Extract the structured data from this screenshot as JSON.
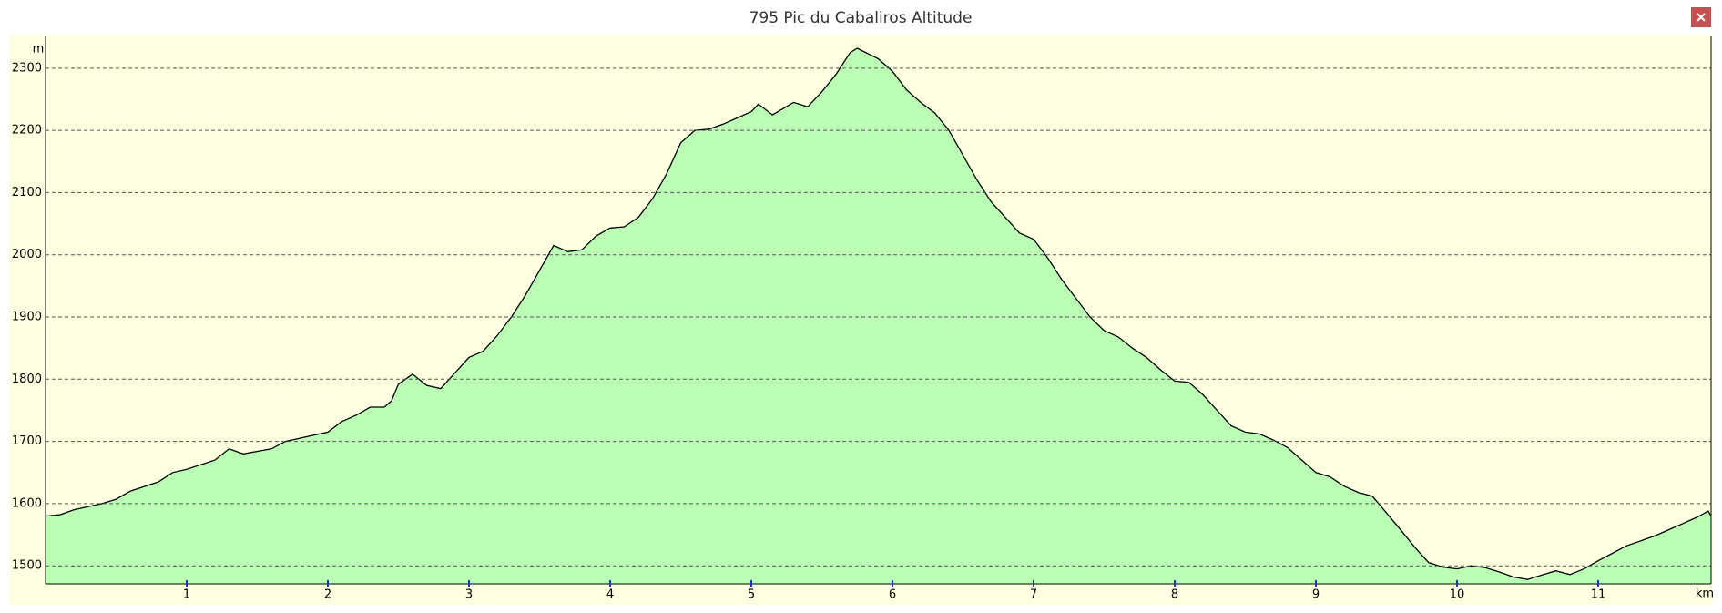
{
  "chart_data": {
    "type": "area",
    "title": "795 Pic du Cabaliros Altitude",
    "y_label": "m",
    "x_label": "km",
    "fill_color": "#bbffb4",
    "line_color": "#000000",
    "background": "#ffffe1",
    "grid": true,
    "xlim": [
      0,
      11.8
    ],
    "ylim": [
      1471,
      2351
    ],
    "xticks": [
      1,
      2,
      3,
      4,
      5,
      6,
      7,
      8,
      9,
      10,
      11
    ],
    "yticks": [
      1500,
      1600,
      1700,
      1800,
      1900,
      2000,
      2100,
      2200,
      2300
    ],
    "x": [
      0,
      0.1,
      0.2,
      0.4,
      0.5,
      0.6,
      0.8,
      0.9,
      1.0,
      1.2,
      1.3,
      1.4,
      1.6,
      1.7,
      1.9,
      2.0,
      2.1,
      2.2,
      2.3,
      2.4,
      2.45,
      2.5,
      2.6,
      2.7,
      2.8,
      2.9,
      3.0,
      3.1,
      3.2,
      3.3,
      3.4,
      3.5,
      3.6,
      3.7,
      3.8,
      3.9,
      4.0,
      4.1,
      4.2,
      4.3,
      4.4,
      4.5,
      4.6,
      4.7,
      4.8,
      4.9,
      5.0,
      5.05,
      5.15,
      5.3,
      5.4,
      5.5,
      5.6,
      5.7,
      5.75,
      5.9,
      6.0,
      6.1,
      6.2,
      6.3,
      6.4,
      6.5,
      6.6,
      6.7,
      6.8,
      6.9,
      7.0,
      7.1,
      7.2,
      7.3,
      7.4,
      7.5,
      7.6,
      7.7,
      7.8,
      7.9,
      8.0,
      8.1,
      8.2,
      8.3,
      8.4,
      8.5,
      8.6,
      8.7,
      8.8,
      8.9,
      9.0,
      9.1,
      9.2,
      9.3,
      9.4,
      9.5,
      9.6,
      9.7,
      9.8,
      9.9,
      10.0,
      10.1,
      10.2,
      10.3,
      10.4,
      10.5,
      10.6,
      10.7,
      10.8,
      10.9,
      11.0,
      11.1,
      11.2,
      11.3,
      11.4,
      11.5,
      11.6,
      11.7,
      11.78,
      11.8
    ],
    "values": [
      1580,
      1582,
      1590,
      1600,
      1607,
      1620,
      1635,
      1650,
      1655,
      1670,
      1688,
      1680,
      1688,
      1700,
      1710,
      1715,
      1732,
      1742,
      1755,
      1755,
      1765,
      1792,
      1808,
      1790,
      1785,
      1810,
      1835,
      1845,
      1870,
      1900,
      1935,
      1975,
      2015,
      2005,
      2008,
      2030,
      2043,
      2045,
      2060,
      2090,
      2130,
      2180,
      2200,
      2202,
      2210,
      2220,
      2230,
      2242,
      2225,
      2245,
      2238,
      2262,
      2290,
      2325,
      2332,
      2315,
      2295,
      2265,
      2245,
      2228,
      2200,
      2160,
      2120,
      2085,
      2060,
      2035,
      2025,
      1995,
      1960,
      1930,
      1900,
      1878,
      1868,
      1850,
      1835,
      1815,
      1797,
      1795,
      1775,
      1750,
      1725,
      1715,
      1712,
      1702,
      1690,
      1670,
      1650,
      1643,
      1628,
      1618,
      1612,
      1585,
      1558,
      1530,
      1505,
      1498,
      1495,
      1500,
      1497,
      1490,
      1482,
      1478,
      1485,
      1492,
      1486,
      1495,
      1508,
      1520,
      1532,
      1540,
      1548,
      1558,
      1568,
      1578,
      1588,
      1580
    ]
  }
}
